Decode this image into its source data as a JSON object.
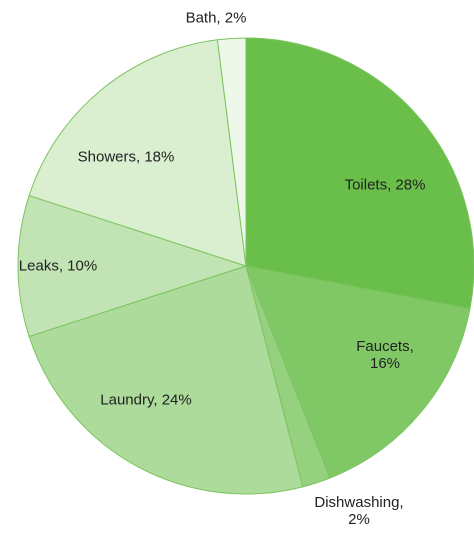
{
  "chart_data": {
    "type": "pie",
    "values": [
      28,
      16,
      2,
      24,
      10,
      18,
      2
    ],
    "value_labels": [
      "Toilets, 28%",
      "Faucets, 16%",
      "Dishwashing,\n2%",
      "Laundry, 24%",
      "Leaks, 10%",
      "Showers, 18%",
      "Bath, 2%"
    ],
    "colors": [
      "#6abf4b",
      "#80c866",
      "#95d17f",
      "#acdb9b",
      "#c2e4b4",
      "#d9efd0",
      "#eef8ea"
    ]
  }
}
